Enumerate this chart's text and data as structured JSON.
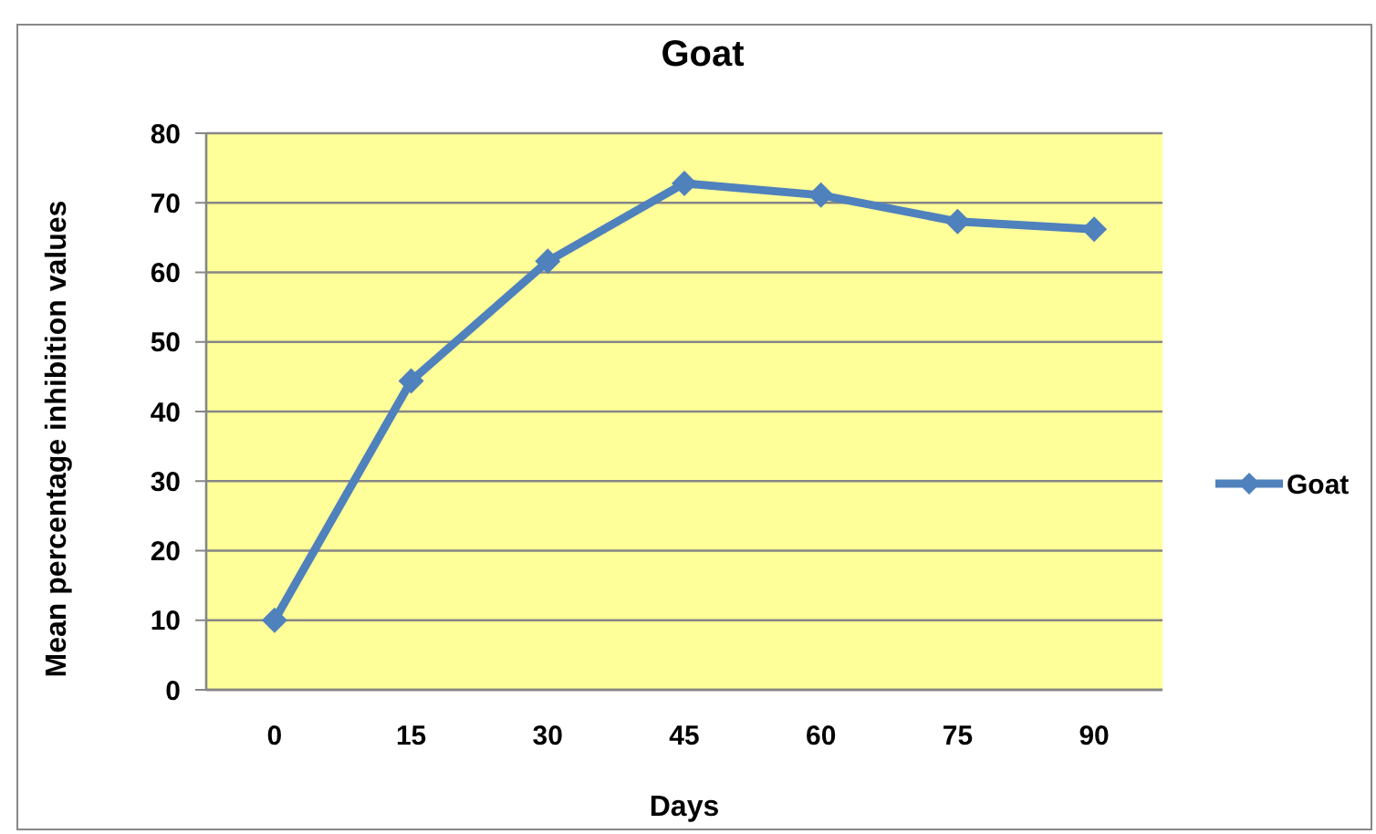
{
  "chart_data": {
    "type": "line",
    "title": "Goat",
    "xlabel": "Days",
    "ylabel": "Mean percentage inhibition values",
    "categories": [
      "0",
      "15",
      "30",
      "45",
      "60",
      "75",
      "90"
    ],
    "series": [
      {
        "name": "Goat",
        "color": "#4f81bd",
        "values": [
          10,
          44.4,
          61.6,
          72.8,
          71.1,
          67.3,
          66.2
        ]
      }
    ],
    "ylim": [
      0,
      80
    ],
    "yticks": [
      0,
      10,
      20,
      30,
      40,
      50,
      60,
      70,
      80
    ],
    "grid": "y",
    "legend": "right",
    "marker": "diamond",
    "line_style": "solid"
  }
}
